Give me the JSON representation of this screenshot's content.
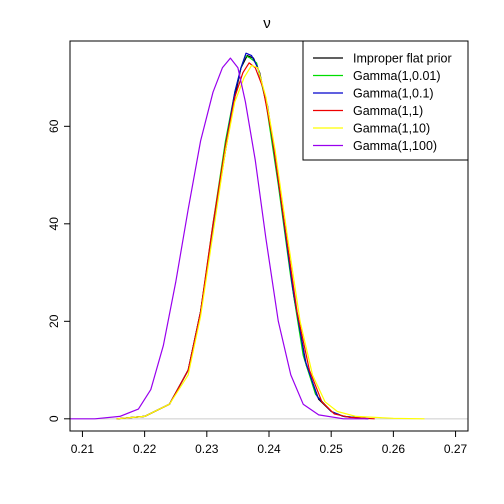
{
  "chart_data": {
    "type": "line",
    "title": "ν",
    "xlabel": "",
    "ylabel": "",
    "xlim": [
      0.208,
      0.272
    ],
    "ylim": [
      -2.5,
      77.5
    ],
    "x_ticks": [
      0.21,
      0.22,
      0.23,
      0.24,
      0.25,
      0.26,
      0.27
    ],
    "y_ticks": [
      0,
      20,
      40,
      60
    ],
    "x_tick_labels": [
      "0.21",
      "0.22",
      "0.23",
      "0.24",
      "0.25",
      "0.26",
      "0.27"
    ],
    "y_tick_labels": [
      "0",
      "20",
      "40",
      "60"
    ],
    "grid": false,
    "baseline": 0,
    "legend_position": "top-right",
    "series": [
      {
        "name": "Improper flat prior",
        "color": "#000000",
        "points": [
          [
            0.2155,
            0
          ],
          [
            0.22,
            0.5
          ],
          [
            0.224,
            3
          ],
          [
            0.227,
            10
          ],
          [
            0.229,
            22
          ],
          [
            0.231,
            39
          ],
          [
            0.233,
            55
          ],
          [
            0.2345,
            66
          ],
          [
            0.2355,
            72
          ],
          [
            0.2365,
            74.5
          ],
          [
            0.2375,
            74
          ],
          [
            0.2385,
            71
          ],
          [
            0.24,
            62
          ],
          [
            0.242,
            44
          ],
          [
            0.244,
            25
          ],
          [
            0.246,
            11
          ],
          [
            0.248,
            4
          ],
          [
            0.25,
            1.5
          ],
          [
            0.252,
            0.5
          ],
          [
            0.256,
            0
          ]
        ]
      },
      {
        "name": "Gamma(1,0.01)",
        "color": "#00dd00",
        "points": [
          [
            0.2155,
            0
          ],
          [
            0.22,
            0.5
          ],
          [
            0.224,
            3
          ],
          [
            0.227,
            10
          ],
          [
            0.229,
            22
          ],
          [
            0.231,
            40
          ],
          [
            0.233,
            57
          ],
          [
            0.2345,
            67
          ],
          [
            0.2355,
            72
          ],
          [
            0.2362,
            74.5
          ],
          [
            0.237,
            74
          ],
          [
            0.238,
            73
          ],
          [
            0.2395,
            65
          ],
          [
            0.2415,
            48
          ],
          [
            0.2435,
            29
          ],
          [
            0.2455,
            13
          ],
          [
            0.2475,
            5
          ],
          [
            0.25,
            1.5
          ],
          [
            0.252,
            0.5
          ],
          [
            0.256,
            0
          ]
        ]
      },
      {
        "name": "Gamma(1,0.1)",
        "color": "#0000cc",
        "points": [
          [
            0.2155,
            0
          ],
          [
            0.22,
            0.5
          ],
          [
            0.224,
            3
          ],
          [
            0.227,
            10
          ],
          [
            0.229,
            22
          ],
          [
            0.231,
            39
          ],
          [
            0.233,
            56
          ],
          [
            0.2345,
            67
          ],
          [
            0.2355,
            72
          ],
          [
            0.2363,
            75
          ],
          [
            0.2372,
            74.5
          ],
          [
            0.2382,
            72
          ],
          [
            0.2398,
            64
          ],
          [
            0.2418,
            46
          ],
          [
            0.2438,
            27
          ],
          [
            0.2458,
            12
          ],
          [
            0.2478,
            4.5
          ],
          [
            0.25,
            1.5
          ],
          [
            0.252,
            0.5
          ],
          [
            0.256,
            0
          ]
        ]
      },
      {
        "name": "Gamma(1,1)",
        "color": "#ee0000",
        "points": [
          [
            0.2155,
            0
          ],
          [
            0.22,
            0.5
          ],
          [
            0.224,
            3
          ],
          [
            0.227,
            10
          ],
          [
            0.229,
            22
          ],
          [
            0.231,
            40
          ],
          [
            0.233,
            56
          ],
          [
            0.2345,
            66
          ],
          [
            0.2358,
            71
          ],
          [
            0.2368,
            73
          ],
          [
            0.2378,
            72
          ],
          [
            0.239,
            68
          ],
          [
            0.2405,
            58
          ],
          [
            0.2425,
            40
          ],
          [
            0.2445,
            22
          ],
          [
            0.2465,
            10
          ],
          [
            0.2485,
            3.5
          ],
          [
            0.2505,
            1
          ],
          [
            0.253,
            0.3
          ],
          [
            0.257,
            0
          ]
        ]
      },
      {
        "name": "Gamma(1,10)",
        "color": "#ffff00",
        "points": [
          [
            0.2155,
            0
          ],
          [
            0.22,
            0.5
          ],
          [
            0.224,
            3
          ],
          [
            0.227,
            9
          ],
          [
            0.229,
            21
          ],
          [
            0.231,
            38
          ],
          [
            0.233,
            55
          ],
          [
            0.2345,
            65
          ],
          [
            0.236,
            70
          ],
          [
            0.2372,
            72.5
          ],
          [
            0.2382,
            72
          ],
          [
            0.2395,
            66
          ],
          [
            0.241,
            55
          ],
          [
            0.243,
            37
          ],
          [
            0.245,
            20
          ],
          [
            0.247,
            9
          ],
          [
            0.249,
            3.5
          ],
          [
            0.251,
            1.5
          ],
          [
            0.254,
            0.5
          ],
          [
            0.26,
            0.1
          ],
          [
            0.265,
            0
          ]
        ]
      },
      {
        "name": "Gamma(1,100)",
        "color": "#9900ee",
        "points": [
          [
            0.208,
            0
          ],
          [
            0.212,
            0
          ],
          [
            0.216,
            0.5
          ],
          [
            0.219,
            2
          ],
          [
            0.221,
            6
          ],
          [
            0.223,
            15
          ],
          [
            0.225,
            28
          ],
          [
            0.227,
            43
          ],
          [
            0.229,
            57
          ],
          [
            0.231,
            67
          ],
          [
            0.2325,
            72
          ],
          [
            0.2338,
            74
          ],
          [
            0.235,
            72
          ],
          [
            0.2362,
            65
          ],
          [
            0.2378,
            53
          ],
          [
            0.2395,
            37
          ],
          [
            0.2415,
            20
          ],
          [
            0.2435,
            9
          ],
          [
            0.2455,
            3
          ],
          [
            0.248,
            0.8
          ],
          [
            0.252,
            0
          ],
          [
            0.256,
            0
          ]
        ]
      }
    ]
  }
}
